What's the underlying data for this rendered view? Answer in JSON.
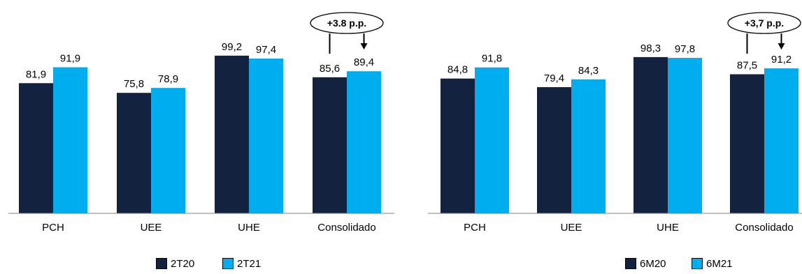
{
  "chart_data": [
    {
      "type": "bar",
      "categories": [
        "PCH",
        "UEE",
        "UHE",
        "Consolidado"
      ],
      "series": [
        {
          "name": "2T20",
          "values": [
            81.9,
            75.8,
            99.2,
            85.6
          ],
          "labels": [
            "81,9",
            "75,8",
            "99,2",
            "85,6"
          ]
        },
        {
          "name": "2T21",
          "values": [
            91.9,
            78.9,
            97.4,
            89.4
          ],
          "labels": [
            "91,9",
            "78,9",
            "97,4",
            "89,4"
          ]
        }
      ],
      "ylim": [
        0,
        100
      ],
      "grid": false,
      "legend_position": "bottom",
      "annotation": {
        "text": "+3.8 p.p.",
        "category": "Consolidado"
      }
    },
    {
      "type": "bar",
      "categories": [
        "PCH",
        "UEE",
        "UHE",
        "Consolidado"
      ],
      "series": [
        {
          "name": "6M20",
          "values": [
            84.8,
            79.4,
            98.3,
            87.5
          ],
          "labels": [
            "84,8",
            "79,4",
            "98,3",
            "87,5"
          ]
        },
        {
          "name": "6M21",
          "values": [
            91.8,
            84.3,
            97.8,
            91.2
          ],
          "labels": [
            "91,8",
            "84,3",
            "97,8",
            "91,2"
          ]
        }
      ],
      "ylim": [
        0,
        100
      ],
      "grid": false,
      "legend_position": "bottom",
      "annotation": {
        "text": "+3,7 p.p.",
        "category": "Consolidado"
      }
    }
  ],
  "colors": {
    "series_dark": "#13233f",
    "series_light": "#00adef",
    "axis": "#808080",
    "text": "#000000"
  }
}
